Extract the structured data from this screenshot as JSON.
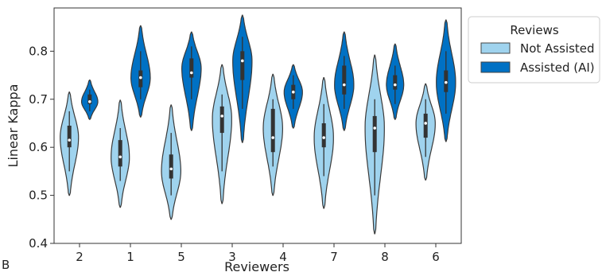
{
  "chart_data": {
    "type": "violin",
    "panel_label": "B",
    "xlabel": "Reviewers",
    "ylabel": "Linear Kappa",
    "ylim": [
      0.4,
      0.89
    ],
    "yticks": [
      "0.4",
      "0.5",
      "0.6",
      "0.7",
      "0.8"
    ],
    "categories": [
      "2",
      "1",
      "5",
      "3",
      "4",
      "7",
      "8",
      "6"
    ],
    "legend": {
      "title": "Reviews",
      "placement": "outside-right",
      "entries": [
        {
          "label": "Not Assisted",
          "color": "#9fd3ee"
        },
        {
          "label": "Assisted (AI)",
          "color": "#0071c4"
        }
      ]
    },
    "series": [
      {
        "name": "Not Assisted",
        "color": "#9fd3ee",
        "violins": [
          {
            "min": 0.5,
            "max": 0.715,
            "q1": 0.6,
            "median": 0.615,
            "q3": 0.645,
            "wlow": 0.55,
            "whigh": 0.675,
            "mode": 0.62,
            "width": 0.18
          },
          {
            "min": 0.475,
            "max": 0.698,
            "q1": 0.56,
            "median": 0.58,
            "q3": 0.615,
            "wlow": 0.53,
            "whigh": 0.64,
            "mode": 0.58,
            "width": 0.18
          },
          {
            "min": 0.45,
            "max": 0.688,
            "q1": 0.535,
            "median": 0.555,
            "q3": 0.585,
            "wlow": 0.5,
            "whigh": 0.63,
            "mode": 0.55,
            "width": 0.19
          },
          {
            "min": 0.483,
            "max": 0.772,
            "q1": 0.63,
            "median": 0.665,
            "q3": 0.685,
            "wlow": 0.55,
            "whigh": 0.71,
            "mode": 0.66,
            "width": 0.19
          },
          {
            "min": 0.5,
            "max": 0.752,
            "q1": 0.59,
            "median": 0.62,
            "q3": 0.68,
            "wlow": 0.56,
            "whigh": 0.7,
            "mode": 0.64,
            "width": 0.19
          },
          {
            "min": 0.473,
            "max": 0.745,
            "q1": 0.6,
            "median": 0.62,
            "q3": 0.65,
            "wlow": 0.54,
            "whigh": 0.69,
            "mode": 0.62,
            "width": 0.19
          },
          {
            "min": 0.42,
            "max": 0.792,
            "q1": 0.59,
            "median": 0.64,
            "q3": 0.665,
            "wlow": 0.5,
            "whigh": 0.7,
            "mode": 0.64,
            "width": 0.19
          },
          {
            "min": 0.532,
            "max": 0.732,
            "q1": 0.62,
            "median": 0.65,
            "q3": 0.67,
            "wlow": 0.58,
            "whigh": 0.7,
            "mode": 0.65,
            "width": 0.19
          }
        ]
      },
      {
        "name": "Assisted (AI)",
        "color": "#0071c4",
        "violins": [
          {
            "min": 0.658,
            "max": 0.74,
            "q1": 0.69,
            "median": 0.695,
            "q3": 0.71,
            "wlow": 0.675,
            "whigh": 0.72,
            "mode": 0.695,
            "width": 0.16
          },
          {
            "min": 0.663,
            "max": 0.853,
            "q1": 0.725,
            "median": 0.745,
            "q3": 0.76,
            "wlow": 0.7,
            "whigh": 0.8,
            "mode": 0.745,
            "width": 0.19
          },
          {
            "min": 0.635,
            "max": 0.84,
            "q1": 0.745,
            "median": 0.755,
            "q3": 0.785,
            "wlow": 0.7,
            "whigh": 0.81,
            "mode": 0.765,
            "width": 0.19
          },
          {
            "min": 0.61,
            "max": 0.875,
            "q1": 0.74,
            "median": 0.78,
            "q3": 0.8,
            "wlow": 0.68,
            "whigh": 0.83,
            "mode": 0.78,
            "width": 0.19
          },
          {
            "min": 0.64,
            "max": 0.772,
            "q1": 0.7,
            "median": 0.715,
            "q3": 0.73,
            "wlow": 0.68,
            "whigh": 0.75,
            "mode": 0.715,
            "width": 0.18
          },
          {
            "min": 0.635,
            "max": 0.84,
            "q1": 0.71,
            "median": 0.73,
            "q3": 0.77,
            "wlow": 0.68,
            "whigh": 0.79,
            "mode": 0.73,
            "width": 0.19
          },
          {
            "min": 0.658,
            "max": 0.815,
            "q1": 0.72,
            "median": 0.73,
            "q3": 0.75,
            "wlow": 0.69,
            "whigh": 0.77,
            "mode": 0.73,
            "width": 0.17
          },
          {
            "min": 0.612,
            "max": 0.865,
            "q1": 0.715,
            "median": 0.735,
            "q3": 0.76,
            "wlow": 0.67,
            "whigh": 0.8,
            "mode": 0.735,
            "width": 0.19
          }
        ]
      }
    ]
  }
}
